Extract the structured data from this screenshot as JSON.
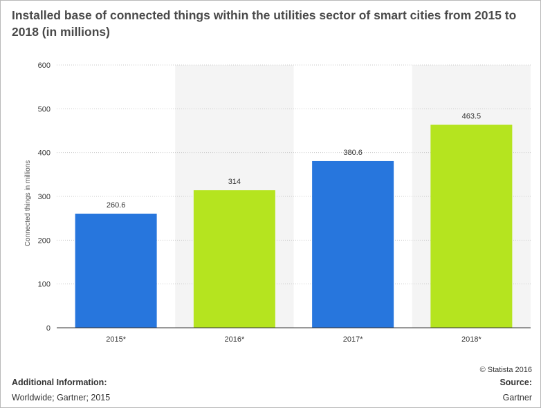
{
  "title": "Installed base of connected things within the utilities sector of smart cities from 2015 to 2018 (in millions)",
  "copyright": "© Statista 2016",
  "additional_info": {
    "heading": "Additional Information:",
    "text": "Worldwide; Gartner; 2015"
  },
  "source": {
    "heading": "Source:",
    "text": "Gartner"
  },
  "colors": {
    "blue": "#2776dd",
    "green": "#b5e41f",
    "band": "#f4f4f4",
    "grid": "#c9c9c9"
  },
  "chart_data": {
    "type": "bar",
    "categories": [
      "2015*",
      "2016*",
      "2017*",
      "2018*"
    ],
    "values": [
      260.6,
      314,
      380.6,
      463.5
    ],
    "data_labels": [
      "260.6",
      "314",
      "380.6",
      "463.5"
    ],
    "bar_colors": [
      "#2776dd",
      "#b5e41f",
      "#2776dd",
      "#b5e41f"
    ],
    "ylabel": "Connected things in millions",
    "xlabel": "",
    "ylim": [
      0,
      600
    ],
    "yticks": [
      0,
      100,
      200,
      300,
      400,
      500,
      600
    ],
    "grid": true,
    "alternating_bands": [
      false,
      true,
      false,
      true
    ]
  }
}
